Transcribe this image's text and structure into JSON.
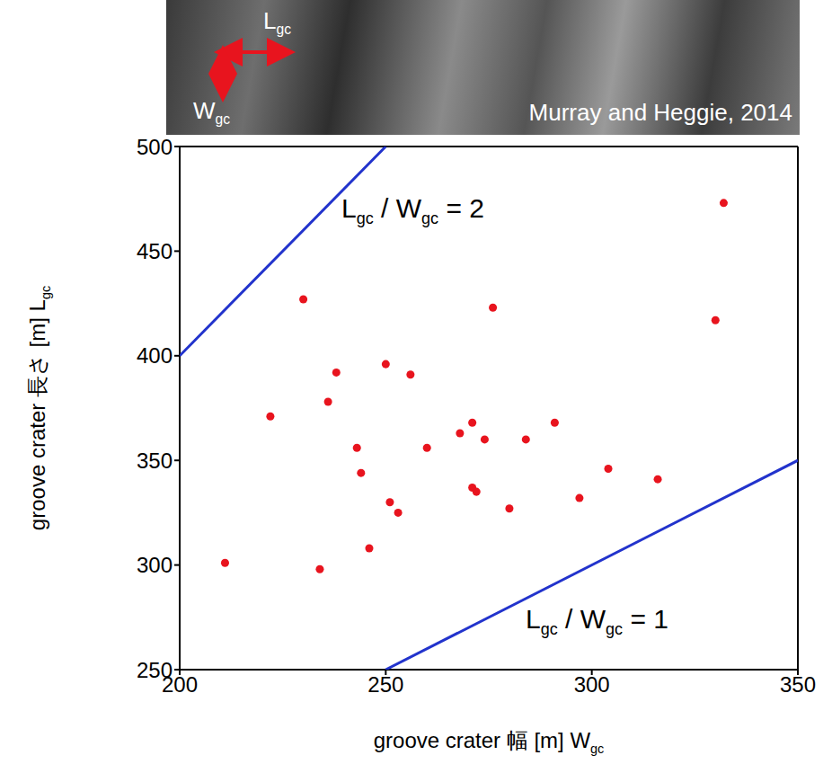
{
  "chart_data": {
    "type": "scatter",
    "image": {
      "labels": {
        "length": "Lgc",
        "width": "Wgc"
      },
      "credit": "Murray and Heggie, 2014"
    },
    "x_label": "groove crater 幅 [m] Wgc",
    "y_label": "groove crater 長さ [m] Lgc",
    "xlim": [
      200,
      350
    ],
    "xticks": [
      200,
      250,
      300,
      350
    ],
    "ylim": [
      250,
      500
    ],
    "yticks": [
      250,
      300,
      350,
      400,
      450,
      500
    ],
    "grid": false,
    "points": {
      "color": "#e8141e",
      "marker": "circle",
      "x": [
        211,
        222,
        230,
        234,
        236,
        238,
        243,
        244,
        246,
        250,
        251,
        253,
        256,
        260,
        268,
        271,
        271,
        272,
        274,
        276,
        280,
        284,
        291,
        297,
        304,
        316,
        330,
        332
      ],
      "y": [
        301,
        371,
        427,
        298,
        378,
        392,
        356,
        344,
        308,
        396,
        330,
        325,
        391,
        356,
        363,
        368,
        337,
        335,
        360,
        423,
        327,
        360,
        368,
        332,
        346,
        341,
        417,
        473
      ]
    },
    "lines": [
      {
        "label": "Lgc / Wgc = 2",
        "color": "#2233cc",
        "x": [
          200,
          250
        ],
        "y": [
          400,
          500
        ]
      },
      {
        "label": "Lgc / Wgc = 1",
        "color": "#2233cc",
        "x": [
          250,
          350
        ],
        "y": [
          250,
          350
        ]
      }
    ]
  }
}
